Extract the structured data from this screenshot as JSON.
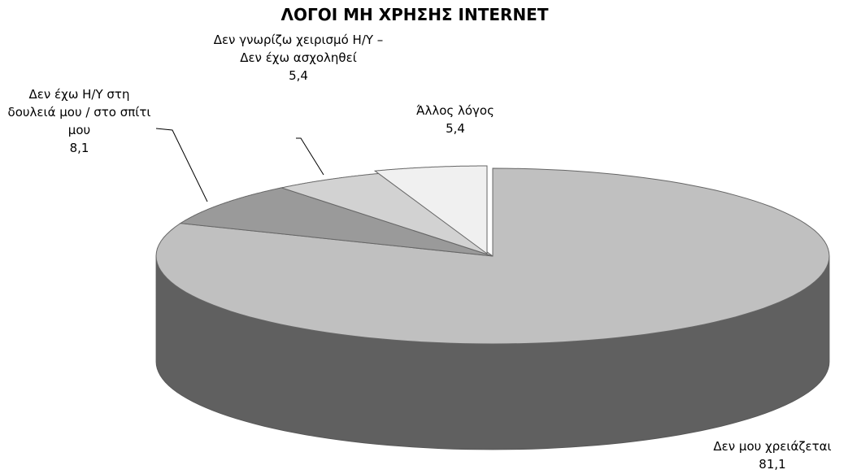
{
  "chart_data": {
    "type": "pie",
    "title": "ΛΟΓΟΙ ΜΗ ΧΡΗΣΗΣ INTERNET",
    "categories": [
      "Δεν μου χρειάζεται",
      "Δεν έχω Η/Υ στη δουλειά μου / στο σπίτι μου",
      "Δεν γνωρίζω χειρισμό Η/Υ – Δεν έχω ασχοληθεί",
      "Άλλος λόγος"
    ],
    "values": [
      81.1,
      8.1,
      5.4,
      5.4
    ],
    "value_labels": [
      "81,1",
      "8,1",
      "5,4",
      "5,4"
    ],
    "colors": [
      "#c0c0c0",
      "#9a9a9a",
      "#d2d2d2",
      "#f0f0f0"
    ]
  }
}
